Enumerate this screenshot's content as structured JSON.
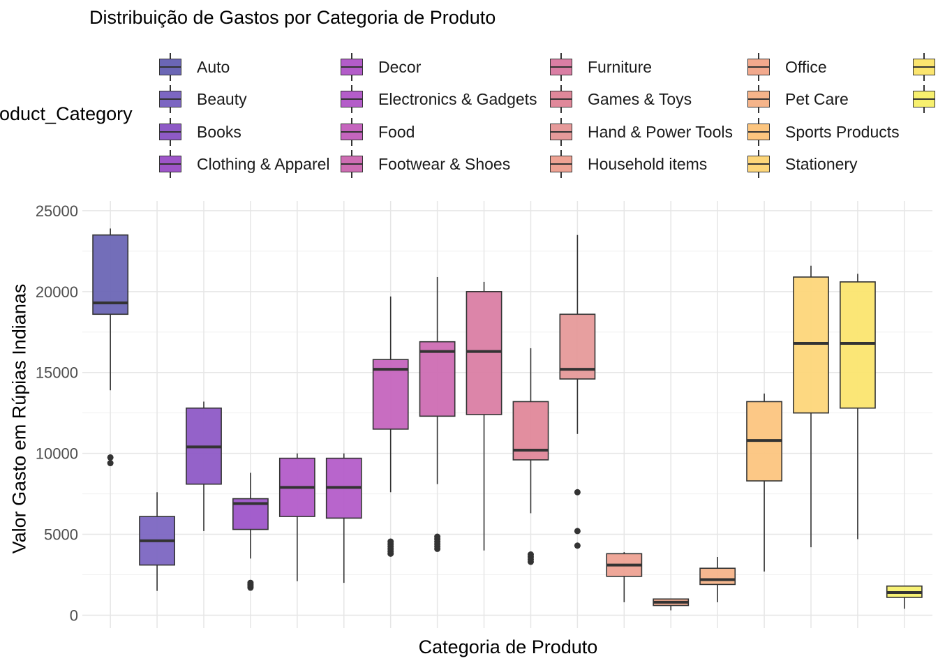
{
  "chart_data": {
    "type": "boxplot",
    "title": "Distribuição de Gastos por Categoria de Produto",
    "xlabel": "Categoria de Produto",
    "ylabel": "Valor Gasto em Rúpias Indianas",
    "legend_title": "Product_Category",
    "legend_position": "top",
    "ylim": [
      -800,
      25600
    ],
    "yticks": [
      0,
      5000,
      10000,
      15000,
      20000,
      25000
    ],
    "grid": true,
    "categories": [
      "Auto",
      "Beauty",
      "Books",
      "Clothing & Apparel",
      "Decor",
      "Electronics & Gadgets",
      "Food",
      "Footwear & Shoes",
      "Furniture",
      "Games & Toys",
      "Hand & Power Tools",
      "Household items",
      "Office",
      "Pet Care",
      "Sports Products",
      "Stationery",
      "",
      ""
    ],
    "colors": [
      "#6B66B5",
      "#7C66C2",
      "#8E5AC6",
      "#9E55C9",
      "#B35CC9",
      "#B45DC9",
      "#C565BE",
      "#CE6DB3",
      "#DA7EA4",
      "#E0889A",
      "#E69A9A",
      "#EEA293",
      "#F2A98D",
      "#F5B48A",
      "#FCC57F",
      "#FDD67A",
      "#FBE56F",
      "#F7F06E"
    ],
    "boxes": [
      {
        "category": "Auto",
        "min": 13900,
        "q1": 18600,
        "median": 19300,
        "q3": 23500,
        "max": 23900,
        "outliers": [
          9400,
          9750
        ]
      },
      {
        "category": "Beauty",
        "min": 1500,
        "q1": 3100,
        "median": 4600,
        "q3": 6100,
        "max": 7600,
        "outliers": []
      },
      {
        "category": "Books",
        "min": 5200,
        "q1": 8100,
        "median": 10400,
        "q3": 12800,
        "max": 13200,
        "outliers": []
      },
      {
        "category": "Clothing & Apparel",
        "min": 3500,
        "q1": 5300,
        "median": 6900,
        "q3": 7200,
        "max": 8800,
        "outliers": [
          1700,
          1800,
          1900,
          2000
        ]
      },
      {
        "category": "Decor",
        "min": 2100,
        "q1": 6100,
        "median": 7900,
        "q3": 9700,
        "max": 10000,
        "outliers": []
      },
      {
        "category": "Electronics & Gadgets",
        "min": 2000,
        "q1": 6000,
        "median": 7900,
        "q3": 9700,
        "max": 10000,
        "outliers": []
      },
      {
        "category": "Food",
        "min": 7600,
        "q1": 11500,
        "median": 15200,
        "q3": 15800,
        "max": 19700,
        "outliers": [
          3800,
          3950,
          4100,
          4250,
          4400,
          4550
        ]
      },
      {
        "category": "Footwear & Shoes",
        "min": 8100,
        "q1": 12300,
        "median": 16300,
        "q3": 16900,
        "max": 20900,
        "outliers": [
          4100,
          4250,
          4400,
          4550,
          4700,
          4850
        ]
      },
      {
        "category": "Furniture",
        "min": 4000,
        "q1": 12400,
        "median": 16300,
        "q3": 20000,
        "max": 20600,
        "outliers": []
      },
      {
        "category": "Games & Toys",
        "min": 6300,
        "q1": 9600,
        "median": 10200,
        "q3": 13200,
        "max": 16500,
        "outliers": [
          3300,
          3450,
          3600,
          3750
        ]
      },
      {
        "category": "Hand & Power Tools",
        "min": 11200,
        "q1": 14600,
        "median": 15200,
        "q3": 18600,
        "max": 23500,
        "outliers": [
          4300,
          5200,
          7600
        ]
      },
      {
        "category": "Household items",
        "min": 800,
        "q1": 2400,
        "median": 3100,
        "q3": 3800,
        "max": 3900,
        "outliers": []
      },
      {
        "category": "Office",
        "min": 300,
        "q1": 600,
        "median": 800,
        "q3": 1000,
        "max": 1000,
        "outliers": []
      },
      {
        "category": "Pet Care",
        "min": 800,
        "q1": 1900,
        "median": 2200,
        "q3": 2900,
        "max": 3600,
        "outliers": []
      },
      {
        "category": "Sports Products",
        "min": 2700,
        "q1": 8300,
        "median": 10800,
        "q3": 13200,
        "max": 13700,
        "outliers": []
      },
      {
        "category": "Stationery",
        "min": 4200,
        "q1": 12500,
        "median": 16800,
        "q3": 20900,
        "max": 21600,
        "outliers": []
      },
      {
        "category": "",
        "min": 4700,
        "q1": 12800,
        "median": 16800,
        "q3": 20600,
        "max": 21100,
        "outliers": []
      },
      {
        "category": "",
        "min": 400,
        "q1": 1100,
        "median": 1400,
        "q3": 1800,
        "max": 1800,
        "outliers": []
      }
    ]
  }
}
